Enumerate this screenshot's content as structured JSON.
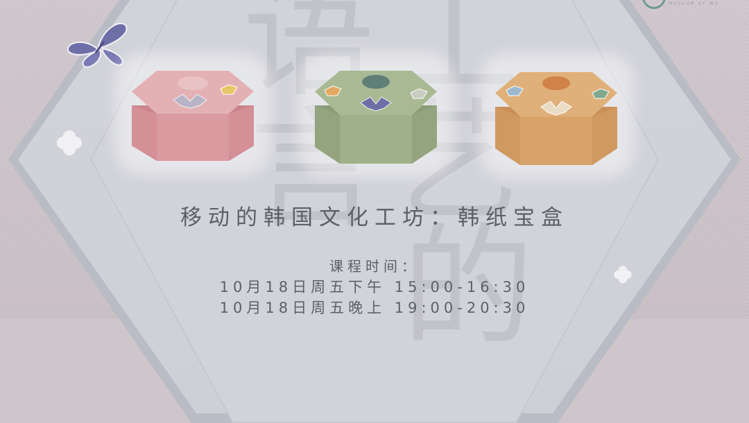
{
  "logo": {
    "text": "MUSEUM OF WG"
  },
  "title": "移动的韩国文化工坊：韩纸宝盒",
  "schedule": {
    "label": "课程时间：",
    "sessions": [
      "10月18日周五下午 15:00-16:30",
      "10月18日周五晚上 19:00-20:30"
    ]
  },
  "watermark": [
    "语",
    "言",
    "工",
    "艺",
    "的"
  ],
  "products": [
    {
      "name": "pink-box",
      "color": "#d99aa0"
    },
    {
      "name": "green-box",
      "color": "#9fb08a"
    },
    {
      "name": "orange-box",
      "color": "#d8a36a"
    }
  ],
  "colors": {
    "text": "#5d5f66",
    "accent_teal": "#6f9a93",
    "butterfly": "#6f6fa8"
  }
}
